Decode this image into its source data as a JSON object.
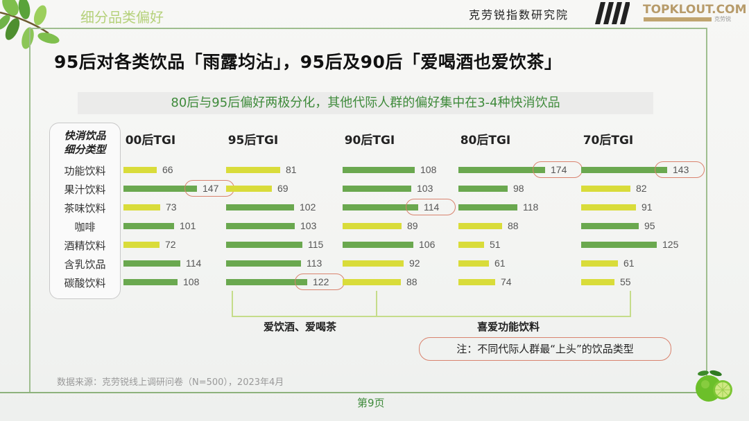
{
  "header": {
    "section_title": "细分品类偏好",
    "org_name": "克劳锐指数研究院",
    "brand_logo": "TOPKLOUT.COM",
    "brand_sub": "克劳锐"
  },
  "headline": "95后对各类饮品「雨露均沾」，95后及90后「爱喝酒也爱饮茶」",
  "subheadline": "80后与95后偏好两极分化，其他代际人群的偏好集中在3-4种快消饮品",
  "colors": {
    "bar_high": "#6aa84f",
    "bar_low": "#d9dc3a",
    "highlight_ring": "#d9826d",
    "accent_green": "#3e8a3a",
    "frame": "#9fbe8f"
  },
  "category_box": {
    "header_line1": "快消饮品",
    "header_line2": "细分类型"
  },
  "chart_data": {
    "type": "bar",
    "orientation": "horizontal",
    "title": "不同代际人群快消饮品细分类型TGI",
    "categories": [
      "功能饮料",
      "果汁饮料",
      "茶味饮料",
      "咖啡",
      "酒精饮料",
      "含乳饮品",
      "碳酸饮料"
    ],
    "series": [
      {
        "name": "00后TGI",
        "values": [
          66,
          147,
          73,
          101,
          72,
          114,
          108
        ],
        "highlight": [
          "果汁饮料"
        ]
      },
      {
        "name": "95后TGI",
        "values": [
          81,
          69,
          102,
          103,
          115,
          113,
          122
        ],
        "highlight": [
          "碳酸饮料"
        ]
      },
      {
        "name": "90后TGI",
        "values": [
          108,
          103,
          114,
          89,
          106,
          92,
          88
        ],
        "highlight": [
          "茶味饮料"
        ]
      },
      {
        "name": "80后TGI",
        "values": [
          174,
          98,
          118,
          88,
          51,
          61,
          74
        ],
        "highlight": [
          "功能饮料"
        ]
      },
      {
        "name": "70后TGI",
        "values": [
          143,
          82,
          91,
          95,
          125,
          61,
          55
        ],
        "highlight": [
          "功能饮料"
        ]
      }
    ],
    "color_rule": "green if TGI >= 95 (above-average), yellow otherwise",
    "annotations": [
      {
        "text": "爱饮酒、爱喝茶",
        "applies_to": [
          "95后TGI",
          "90后TGI"
        ]
      },
      {
        "text": "喜爱功能饮料",
        "applies_to": [
          "80后TGI",
          "70后TGI"
        ]
      }
    ],
    "note": "注：不同代际人群最“上头”的饮品类型",
    "xlabel": "",
    "ylabel": "",
    "grid": false,
    "legend": "none"
  },
  "brackets": {
    "left_label": "爱饮酒、爱喝茶",
    "right_label": "喜爱功能饮料"
  },
  "note": "注：不同代际人群最“上头”的饮品类型",
  "footer": {
    "source": "数据来源：克劳锐线上调研问卷（N=500），2023年4月",
    "page": "第9页"
  }
}
